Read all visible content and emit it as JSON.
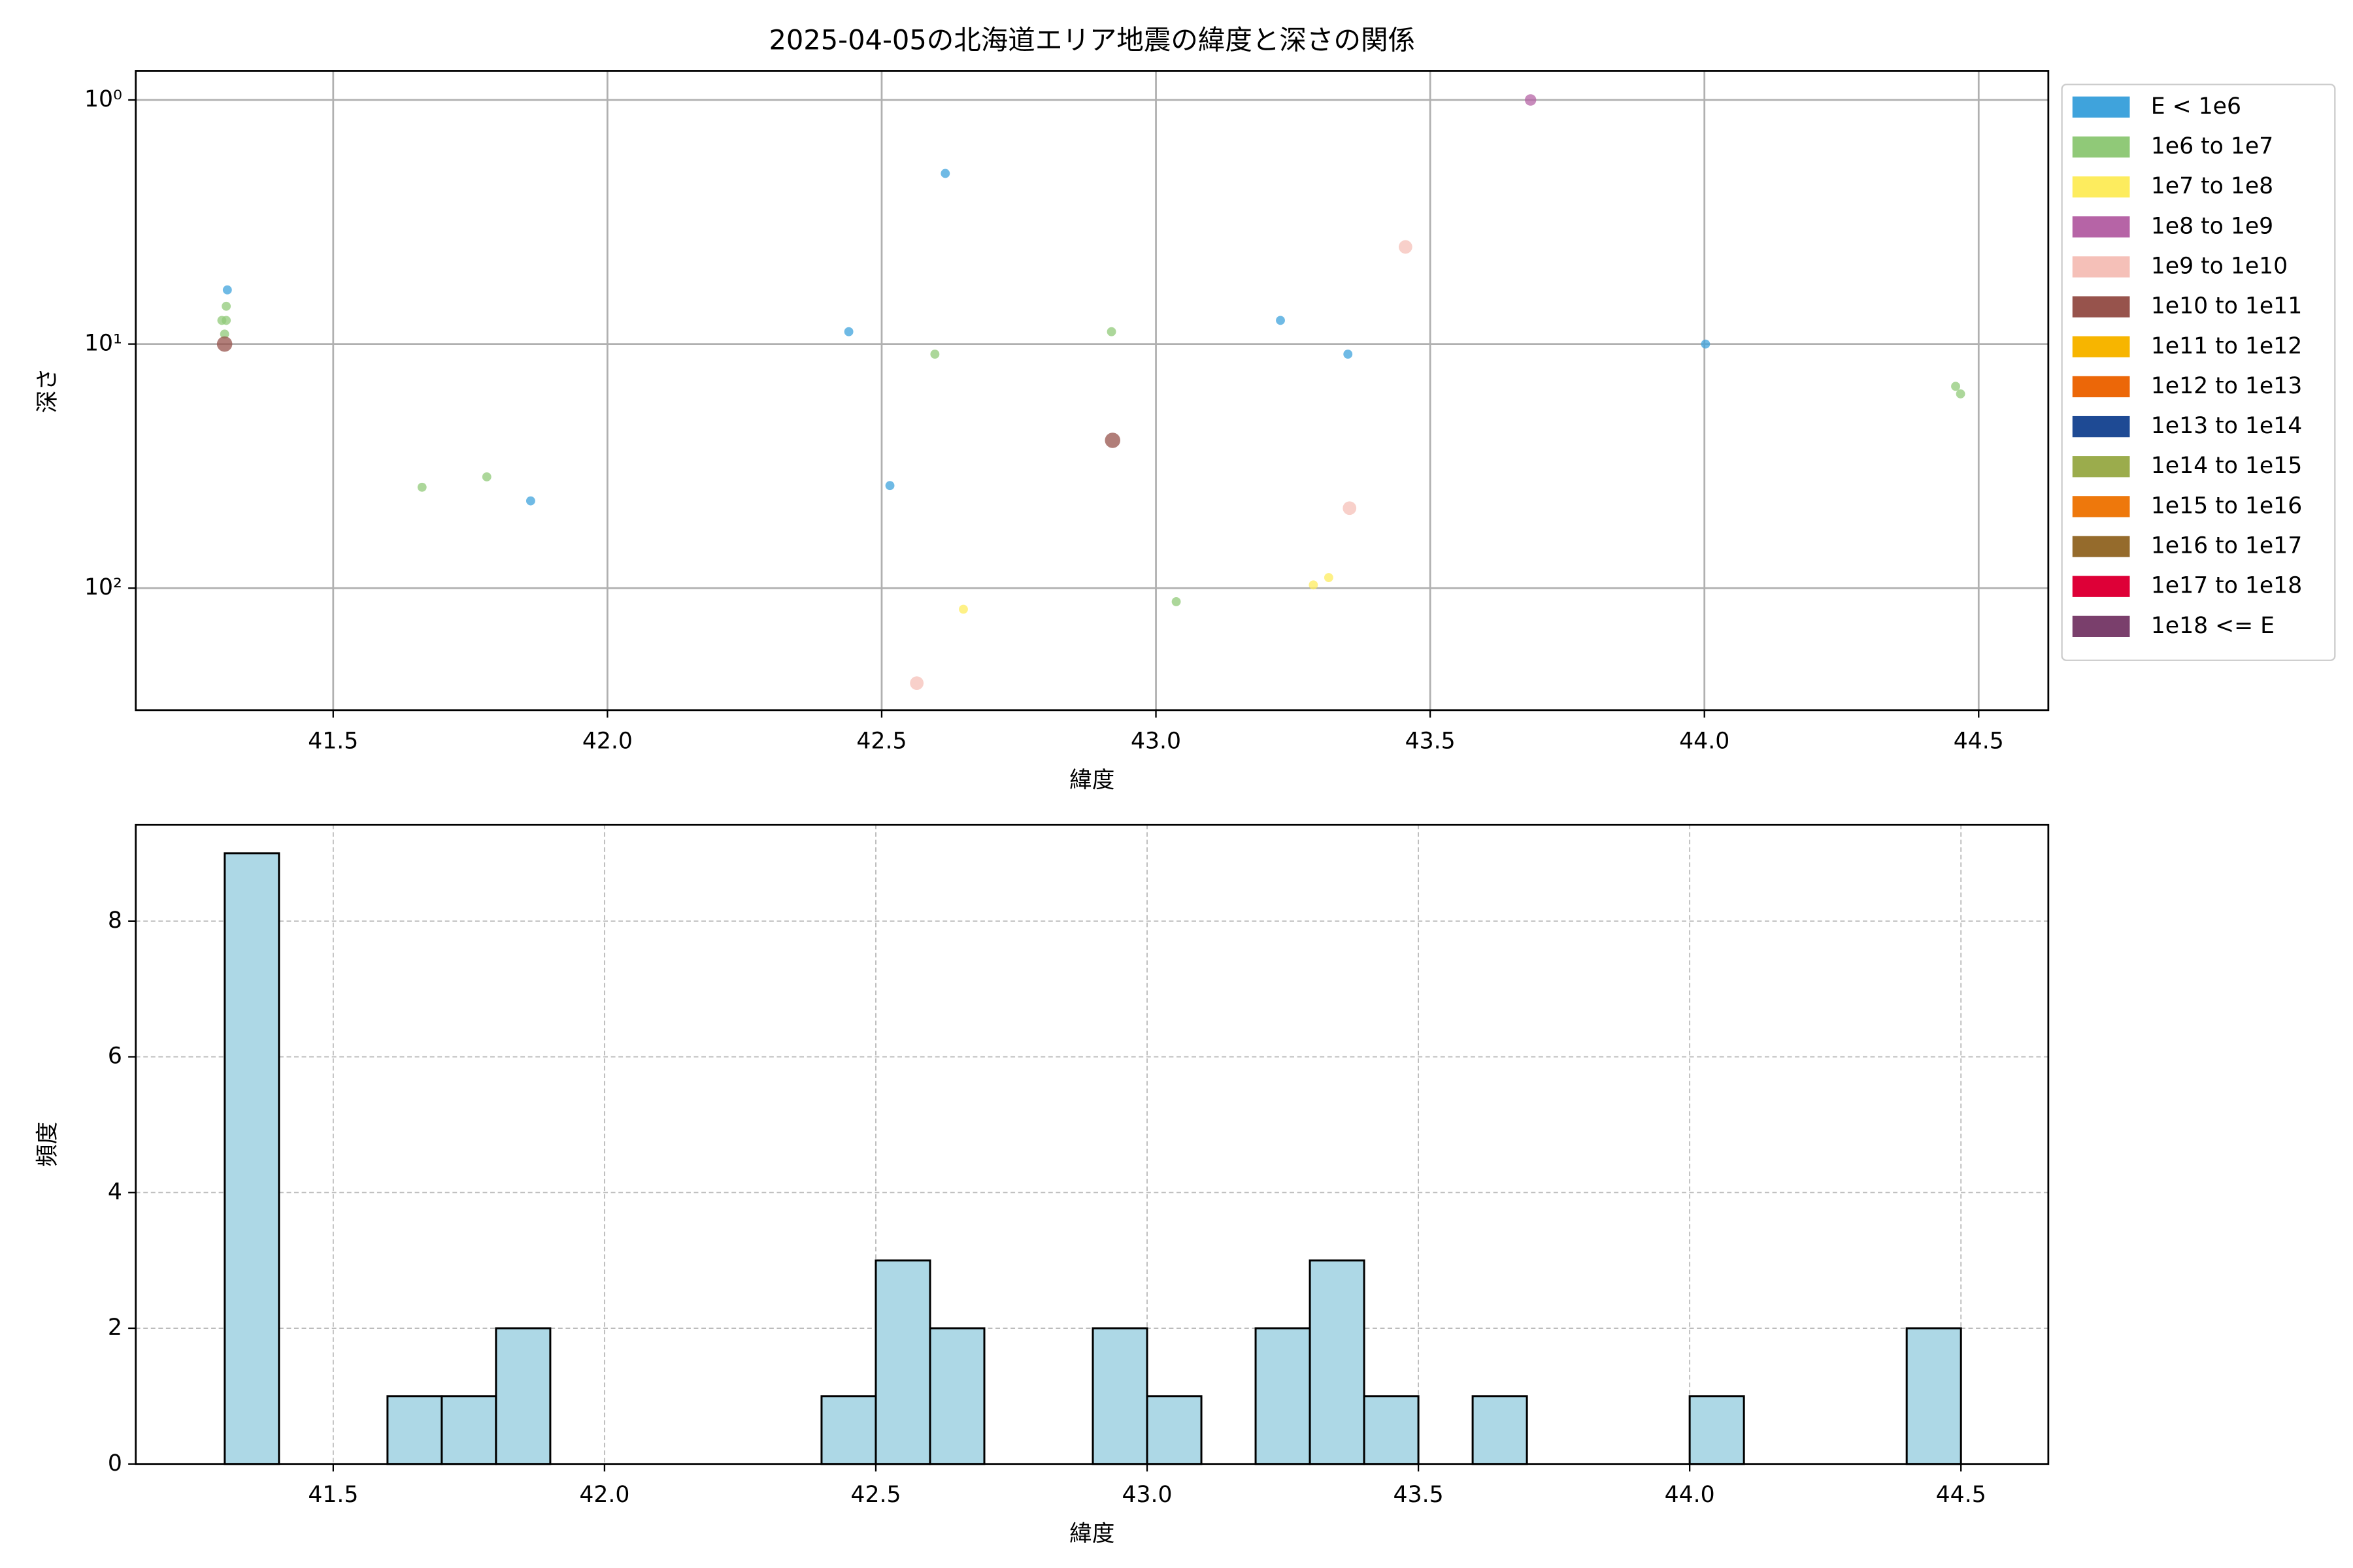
{
  "chart_data": [
    {
      "type": "scatter",
      "title": "2025-04-05の北海道エリア地震の緯度と深さの関係",
      "xlabel": "緯度",
      "ylabel": "深さ",
      "xlim": [
        41.14,
        44.627
      ],
      "xticks": [
        41.5,
        42.0,
        42.5,
        43.0,
        43.5,
        44.0,
        44.5
      ],
      "xtick_labels": [
        "41.5",
        "42.0",
        "42.5",
        "43.0",
        "43.5",
        "44.0",
        "44.5"
      ],
      "ylim": [
        0.76,
        316
      ],
      "y_inverted": true,
      "log_y": true,
      "yticks": [
        {
          "value": 1,
          "label": "10⁰"
        },
        {
          "value": 10,
          "label": "10¹"
        },
        {
          "value": 100,
          "label": "10²"
        }
      ],
      "grid": true,
      "legend": "outside right",
      "series": [
        {
          "name": "E < 1e6",
          "color": "#3fa3dc",
          "x": [
            41.307,
            41.86,
            42.44,
            42.515,
            42.616,
            43.227,
            43.35,
            44.002
          ],
          "y": [
            6.0,
            43.9,
            8.9,
            38,
            2.0,
            8.0,
            11.0,
            10
          ]
        },
        {
          "name": "1e6 to 1e7",
          "color": "#90c978",
          "x": [
            41.305,
            41.297,
            41.305,
            41.302,
            41.662,
            41.78,
            42.597,
            42.919,
            43.037,
            44.458,
            44.467
          ],
          "y": [
            7.0,
            8.0,
            8.0,
            9.1,
            38.6,
            35,
            11.0,
            8.9,
            113.6,
            14.9,
            16
          ]
        },
        {
          "name": "1e7 to 1e8",
          "color": "#fdec5e",
          "x": [
            42.649,
            43.287,
            43.315
          ],
          "y": [
            122,
            97,
            90.5
          ]
        },
        {
          "name": "1e8 to 1e9",
          "color": "#b664a6",
          "x": [
            43.683
          ],
          "y": [
            1.0
          ]
        },
        {
          "name": "1e9 to 1e10",
          "color": "#f5c0b8",
          "x": [
            42.564,
            43.455,
            43.353
          ],
          "y": [
            245,
            4.0,
            47
          ]
        },
        {
          "name": "1e10 to 1e11",
          "color": "#97534c",
          "x": [
            41.302,
            42.921
          ],
          "y": [
            10.0,
            24.8
          ]
        },
        {
          "name": "1e11 to 1e12",
          "color": "#f7b500",
          "x": [],
          "y": []
        },
        {
          "name": "1e12 to 1e13",
          "color": "#ec6708",
          "x": [],
          "y": []
        },
        {
          "name": "1e13 to 1e14",
          "color": "#1e4a94",
          "x": [],
          "y": []
        },
        {
          "name": "1e14 to 1e15",
          "color": "#9bac4c",
          "x": [],
          "y": []
        },
        {
          "name": "1e15 to 1e16",
          "color": "#ee780c",
          "x": [],
          "y": []
        },
        {
          "name": "1e16 to 1e17",
          "color": "#956b2c",
          "x": [],
          "y": []
        },
        {
          "name": "1e17 to 1e18",
          "color": "#de0037",
          "x": [],
          "y": []
        },
        {
          "name": "1e18 <= E",
          "color": "#7a3f6c",
          "x": [],
          "y": []
        }
      ]
    },
    {
      "type": "histogram",
      "xlabel": "緯度",
      "ylabel": "頻度",
      "xlim": [
        41.136,
        44.661
      ],
      "xticks": [
        41.5,
        42.0,
        42.5,
        43.0,
        43.5,
        44.0,
        44.5
      ],
      "xtick_labels": [
        "41.5",
        "42.0",
        "42.5",
        "43.0",
        "43.5",
        "44.0",
        "44.5"
      ],
      "ylim": [
        0,
        9.42
      ],
      "yticks": [
        0,
        2,
        4,
        6,
        8
      ],
      "grid": true,
      "color": "#add8e6",
      "bins": [
        41.3,
        41.4,
        41.5,
        41.6,
        41.7,
        41.8,
        41.9,
        42.0,
        42.1,
        42.2,
        42.3,
        42.4,
        42.5,
        42.6,
        42.7,
        42.8,
        42.9,
        43.0,
        43.1,
        43.2,
        43.3,
        43.4,
        43.5,
        43.6,
        43.7,
        43.8,
        43.9,
        44.0,
        44.1,
        44.2,
        44.3,
        44.4,
        44.5
      ],
      "counts": [
        9,
        0,
        0,
        1,
        1,
        2,
        0,
        0,
        0,
        0,
        0,
        1,
        3,
        2,
        0,
        0,
        2,
        1,
        0,
        2,
        3,
        1,
        0,
        1,
        0,
        0,
        0,
        1,
        0,
        0,
        0,
        2
      ]
    }
  ]
}
